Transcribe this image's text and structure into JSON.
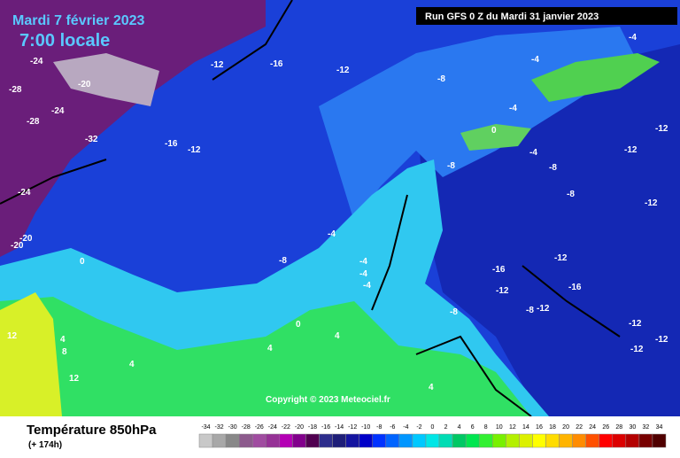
{
  "header": {
    "date": "Mardi 7 février 2023",
    "time": "7:00 locale",
    "run": "Run GFS 0 Z du Mardi 31 janvier 2023"
  },
  "copyright": "Copyright © 2023 Meteociel.fr",
  "footer": {
    "title": "Température 850hPa",
    "lead": "(+ 174h)"
  },
  "map_labels": [
    -24,
    -28,
    -20,
    -24,
    -28,
    -32,
    -16,
    -12,
    -12,
    -16,
    -24,
    -20,
    -20,
    -8,
    -12,
    -4,
    -4,
    -4,
    -4,
    -8,
    -8,
    -4,
    -8,
    -12,
    -12,
    -12,
    -8,
    -12,
    -16,
    -12,
    -16,
    -12,
    -8,
    -12,
    -12,
    -12,
    -4,
    -4,
    -4,
    -8,
    0,
    0,
    0,
    4,
    4,
    4,
    8,
    12,
    12,
    4,
    4
  ],
  "scale": {
    "ticks": [
      -34,
      -32,
      -30,
      -28,
      -26,
      -24,
      -22,
      -20,
      -18,
      -16,
      -14,
      -12,
      -10,
      -8,
      -6,
      -4,
      -2,
      0,
      2,
      4,
      6,
      8,
      10,
      12,
      14,
      16,
      18,
      20,
      22,
      24,
      26,
      28,
      30,
      32,
      34
    ],
    "colors": [
      "#c8c8c8",
      "#a8a8a8",
      "#888888",
      "#8c5a8c",
      "#a04ca0",
      "#963296",
      "#b400b4",
      "#82008c",
      "#500050",
      "#2d2d8c",
      "#1e1e78",
      "#1414a0",
      "#0000c8",
      "#0032ff",
      "#0064ff",
      "#0096ff",
      "#00c8ff",
      "#00e6e6",
      "#00dcb4",
      "#00c864",
      "#00e650",
      "#32f032",
      "#78f000",
      "#b4f000",
      "#dcf000",
      "#ffff00",
      "#ffdc00",
      "#ffb400",
      "#ff8c00",
      "#ff5000",
      "#ff0000",
      "#dc0000",
      "#b40000",
      "#780000",
      "#500000"
    ]
  }
}
